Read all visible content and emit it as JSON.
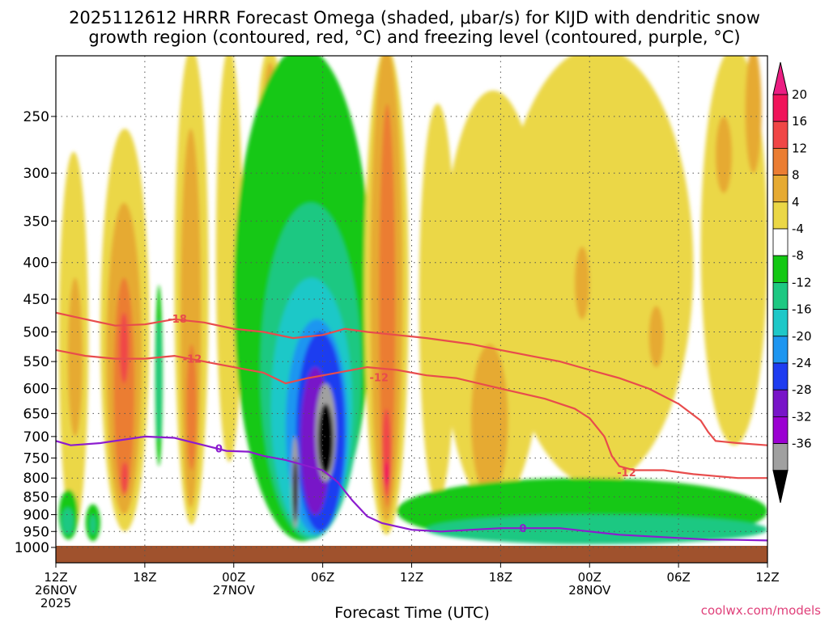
{
  "chart_data": {
    "type": "heatmap",
    "title_line1": "2025112612 HRRR Forecast Omega (shaded, μbar/s) for KIJD with dendritic snow",
    "title_line2": "growth region (contoured, red, °C) and freezing level (contoured, purple, °C)",
    "xlabel": "Forecast Time (UTC)",
    "credit": "coolwx.com/models",
    "pressure_ticks": [
      250,
      300,
      350,
      400,
      450,
      500,
      550,
      600,
      650,
      700,
      750,
      800,
      850,
      900,
      950,
      1000
    ],
    "pressure_range": [
      200,
      1000
    ],
    "time_range_hours": [
      0,
      48
    ],
    "time_ticks": [
      {
        "hour": 0,
        "lines": [
          "12Z",
          "26NOV",
          "2025"
        ]
      },
      {
        "hour": 6,
        "lines": [
          "18Z"
        ]
      },
      {
        "hour": 12,
        "lines": [
          "00Z",
          "27NOV"
        ]
      },
      {
        "hour": 18,
        "lines": [
          "06Z"
        ]
      },
      {
        "hour": 24,
        "lines": [
          "12Z"
        ]
      },
      {
        "hour": 30,
        "lines": [
          "18Z"
        ]
      },
      {
        "hour": 36,
        "lines": [
          "00Z",
          "28NOV"
        ]
      },
      {
        "hour": 42,
        "lines": [
          "06Z"
        ]
      },
      {
        "hour": 48,
        "lines": [
          "12Z"
        ]
      }
    ],
    "colorbar": {
      "labels": [
        "20",
        "16",
        "12",
        "8",
        "4",
        "-4",
        "-8",
        "-12",
        "-16",
        "-20",
        "-24",
        "-28",
        "-32",
        "-36"
      ],
      "colors": [
        "#f0145a",
        "#f04646",
        "#eb7d32",
        "#e6aa32",
        "#ebd746",
        "#ffffff",
        "#14c814",
        "#1ec882",
        "#1ec8c8",
        "#1e96f0",
        "#1e3cf0",
        "#7814c8",
        "#9b00d2",
        "#a0a0a0"
      ],
      "top_color": "#eb1e82",
      "bottom_color": "#000000"
    },
    "omega_bands": [
      {
        "color": "#ebd746",
        "h0": 0.2,
        "h1": 2.2,
        "p0": 280,
        "p1": 950
      },
      {
        "color": "#e6aa32",
        "h0": 0.8,
        "h1": 1.8,
        "p0": 420,
        "p1": 700
      },
      {
        "color": "#ebd746",
        "h0": 3.0,
        "h1": 6.3,
        "p0": 260,
        "p1": 950
      },
      {
        "color": "#e6aa32",
        "h0": 3.4,
        "h1": 5.8,
        "p0": 330,
        "p1": 900
      },
      {
        "color": "#eb7d32",
        "h0": 3.9,
        "h1": 5.3,
        "p0": 420,
        "p1": 850
      },
      {
        "color": "#f04646",
        "h0": 4.3,
        "h1": 4.9,
        "p0": 470,
        "p1": 590
      },
      {
        "color": "#f04646",
        "h0": 4.4,
        "h1": 4.9,
        "p0": 760,
        "p1": 840
      },
      {
        "color": "#14c814",
        "h0": 6.7,
        "h1": 7.2,
        "p0": 430,
        "p1": 770
      },
      {
        "color": "#1ec882",
        "h0": 6.8,
        "h1": 7.1,
        "p0": 480,
        "p1": 710
      },
      {
        "color": "#ebd746",
        "h0": 8.0,
        "h1": 10.3,
        "p0": 200,
        "p1": 930
      },
      {
        "color": "#e6aa32",
        "h0": 8.4,
        "h1": 9.8,
        "p0": 260,
        "p1": 880
      },
      {
        "color": "#eb7d32",
        "h0": 8.8,
        "h1": 9.5,
        "p0": 520,
        "p1": 780
      },
      {
        "color": "#ebd746",
        "h0": 10.8,
        "h1": 12.6,
        "p0": 200,
        "p1": 760
      },
      {
        "color": "#ebd746",
        "h0": 13.5,
        "h1": 15.4,
        "p0": 200,
        "p1": 420
      },
      {
        "color": "#e6aa32",
        "h0": 14.0,
        "h1": 14.9,
        "p0": 210,
        "p1": 290
      },
      {
        "color": "#14c814",
        "h0": 12.0,
        "h1": 21.3,
        "p0": 200,
        "p1": 980
      },
      {
        "color": "#1ec882",
        "h0": 13.8,
        "h1": 20.6,
        "p0": 330,
        "p1": 975
      },
      {
        "color": "#1ec8c8",
        "h0": 14.5,
        "h1": 20.0,
        "p0": 420,
        "p1": 965
      },
      {
        "color": "#1e96f0",
        "h0": 15.5,
        "h1": 19.7,
        "p0": 480,
        "p1": 960
      },
      {
        "color": "#1e3cf0",
        "h0": 16.2,
        "h1": 19.5,
        "p0": 500,
        "p1": 950
      },
      {
        "color": "#7814c8",
        "h0": 16.5,
        "h1": 18.5,
        "p0": 560,
        "p1": 900
      },
      {
        "color": "#a0a0a0",
        "h0": 15.9,
        "h1": 16.4,
        "p0": 700,
        "p1": 940
      },
      {
        "color": "#000000",
        "h0": 16.0,
        "h1": 16.3,
        "p0": 750,
        "p1": 920
      },
      {
        "color": "#a0a0a0",
        "h0": 17.5,
        "h1": 18.9,
        "p0": 590,
        "p1": 810
      },
      {
        "color": "#000000",
        "h0": 17.7,
        "h1": 18.7,
        "p0": 630,
        "p1": 790
      },
      {
        "color": "#ebd746",
        "h0": 20.8,
        "h1": 23.8,
        "p0": 200,
        "p1": 960
      },
      {
        "color": "#e6aa32",
        "h0": 21.2,
        "h1": 23.4,
        "p0": 200,
        "p1": 920
      },
      {
        "color": "#eb7d32",
        "h0": 21.8,
        "h1": 22.9,
        "p0": 240,
        "p1": 880
      },
      {
        "color": "#f04646",
        "h0": 22.0,
        "h1": 22.6,
        "p0": 640,
        "p1": 850
      },
      {
        "color": "#f0145a",
        "h0": 22.1,
        "h1": 22.5,
        "p0": 760,
        "p1": 820
      },
      {
        "color": "#ebd746",
        "h0": 24.5,
        "h1": 27.0,
        "p0": 240,
        "p1": 860
      },
      {
        "color": "#ebd746",
        "h0": 26.0,
        "h1": 33.0,
        "p0": 230,
        "p1": 880
      },
      {
        "color": "#e6aa32",
        "h0": 28.0,
        "h1": 30.5,
        "p0": 520,
        "p1": 850
      },
      {
        "color": "#ebd746",
        "h0": 30.0,
        "h1": 43.0,
        "p0": 200,
        "p1": 820
      },
      {
        "color": "#e6aa32",
        "h0": 35.0,
        "h1": 36.0,
        "p0": 380,
        "p1": 480
      },
      {
        "color": "#e6aa32",
        "h0": 40.0,
        "h1": 41.0,
        "p0": 460,
        "p1": 560
      },
      {
        "color": "#ebd746",
        "h0": 43.5,
        "h1": 48.0,
        "p0": 200,
        "p1": 720
      },
      {
        "color": "#e6aa32",
        "h0": 44.5,
        "h1": 45.6,
        "p0": 250,
        "p1": 320
      },
      {
        "color": "#e6aa32",
        "h0": 46.5,
        "h1": 47.6,
        "p0": 200,
        "p1": 300
      },
      {
        "color": "#14c814",
        "h0": 23.0,
        "h1": 48.0,
        "p0": 800,
        "p1": 990
      },
      {
        "color": "#1ec882",
        "h0": 25.0,
        "h1": 48.0,
        "p0": 900,
        "p1": 990
      },
      {
        "color": "#14c814",
        "h0": 0.2,
        "h1": 1.5,
        "p0": 830,
        "p1": 975
      },
      {
        "color": "#1ec882",
        "h0": 0.4,
        "h1": 1.2,
        "p0": 880,
        "p1": 960
      },
      {
        "color": "#14c814",
        "h0": 2.0,
        "h1": 3.0,
        "p0": 870,
        "p1": 980
      },
      {
        "color": "#1ec882",
        "h0": 2.3,
        "h1": 2.7,
        "p0": 900,
        "p1": 960
      }
    ],
    "ground_pressure": 1000,
    "ground_color": "#a0522d",
    "contours": [
      {
        "name": "minus18",
        "label": "-18",
        "color": "#e84c4c",
        "label_hour": 8.2,
        "points": [
          [
            0,
            470
          ],
          [
            2,
            480
          ],
          [
            4,
            490
          ],
          [
            6,
            488
          ],
          [
            8,
            480
          ],
          [
            10,
            485
          ],
          [
            12,
            495
          ],
          [
            14,
            500
          ],
          [
            16,
            510
          ],
          [
            18,
            505
          ],
          [
            19.5,
            495
          ],
          [
            21,
            500
          ],
          [
            23,
            505
          ],
          [
            25,
            510
          ],
          [
            28,
            520
          ],
          [
            30,
            530
          ],
          [
            32,
            540
          ],
          [
            34,
            550
          ],
          [
            36,
            565
          ],
          [
            38,
            580
          ],
          [
            40,
            600
          ],
          [
            42,
            630
          ],
          [
            43.5,
            665
          ],
          [
            44,
            690
          ],
          [
            44.5,
            710
          ],
          [
            46,
            715
          ],
          [
            48,
            720
          ]
        ]
      },
      {
        "name": "minus12",
        "label": "-12",
        "color": "#e84c4c",
        "label_hour": 9.2,
        "points": [
          [
            0,
            530
          ],
          [
            2,
            540
          ],
          [
            4,
            545
          ],
          [
            6,
            545
          ],
          [
            8,
            540
          ],
          [
            10,
            550
          ],
          [
            12,
            560
          ],
          [
            14,
            570
          ],
          [
            15.5,
            590
          ],
          [
            17,
            580
          ],
          [
            19,
            570
          ],
          [
            21,
            560
          ],
          [
            23,
            565
          ],
          [
            25,
            575
          ],
          [
            27,
            580
          ],
          [
            30,
            600
          ],
          [
            33,
            620
          ],
          [
            35,
            640
          ],
          [
            36,
            660
          ],
          [
            37,
            700
          ],
          [
            37.5,
            745
          ],
          [
            38,
            770
          ],
          [
            39,
            780
          ],
          [
            41,
            780
          ],
          [
            43,
            790
          ],
          [
            46,
            800
          ],
          [
            48,
            800
          ]
        ]
      },
      {
        "name": "freezing",
        "label": "0",
        "color": "#8c1ccf",
        "label_hour": 11,
        "points": [
          [
            0,
            710
          ],
          [
            1,
            720
          ],
          [
            3,
            715
          ],
          [
            5,
            705
          ],
          [
            6,
            700
          ],
          [
            8,
            703
          ],
          [
            10,
            720
          ],
          [
            11.5,
            733
          ],
          [
            13,
            735
          ],
          [
            14,
            745
          ],
          [
            15.5,
            755
          ],
          [
            16.5,
            765
          ],
          [
            18,
            780
          ],
          [
            19,
            810
          ],
          [
            20,
            860
          ],
          [
            21,
            905
          ],
          [
            22,
            925
          ],
          [
            24,
            945
          ],
          [
            26,
            950
          ],
          [
            28,
            945
          ],
          [
            30,
            940
          ],
          [
            32,
            940
          ],
          [
            34,
            940
          ],
          [
            36,
            950
          ],
          [
            38,
            960
          ],
          [
            40,
            965
          ],
          [
            42,
            970
          ],
          [
            44,
            975
          ],
          [
            46,
            976
          ],
          [
            48,
            978
          ]
        ]
      }
    ],
    "extra_labels": [
      {
        "text": "-12",
        "color": "#e84c4c",
        "hour": 21.8,
        "p": 580
      },
      {
        "text": "-12",
        "color": "#e84c4c",
        "hour": 38.5,
        "p": 787
      },
      {
        "text": "0",
        "color": "#8c1ccf",
        "hour": 31.5,
        "p": 942
      }
    ]
  }
}
